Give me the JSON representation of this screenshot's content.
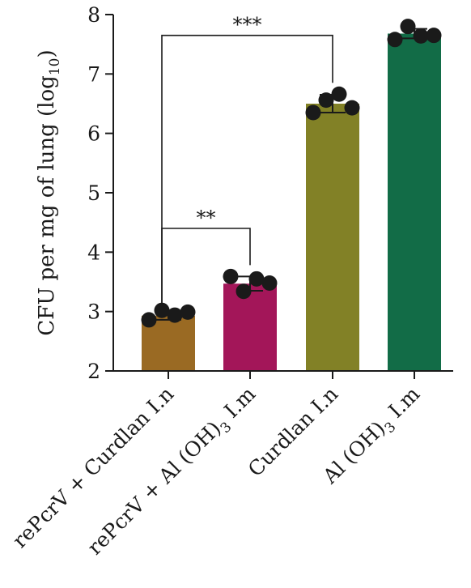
{
  "chart_data": {
    "type": "bar",
    "ylabel_main": "CFU per mg of lung (log",
    "ylabel_sub": "10",
    "ylabel_end": ")",
    "ylim": [
      2,
      8
    ],
    "yticks": [
      "2",
      "3",
      "4",
      "5",
      "6",
      "7",
      "8"
    ],
    "grid": false,
    "categories": [
      {
        "main": "rePcrV + Curdlan I.n",
        "sub": "",
        "tail": ""
      },
      {
        "main": "rePcrV + Al (OH)",
        "sub": "3",
        "tail": " I.m"
      },
      {
        "main": "Curdlan I.n",
        "sub": "",
        "tail": ""
      },
      {
        "main": "Al (OH)",
        "sub": "3",
        "tail": " I.m"
      }
    ],
    "values": [
      2.93,
      3.47,
      6.5,
      7.68
    ],
    "errors": [
      0.07,
      0.12,
      0.15,
      0.08
    ],
    "colors": [
      "#9a6a23",
      "#a31659",
      "#828126",
      "#126c47"
    ],
    "points": [
      [
        2.86,
        3.02,
        2.94,
        2.99
      ],
      [
        3.59,
        3.34,
        3.55,
        3.48
      ],
      [
        6.35,
        6.56,
        6.66,
        6.43
      ],
      [
        7.58,
        7.8,
        7.64,
        7.65
      ]
    ],
    "significance": [
      {
        "from": 0,
        "to": 1,
        "label": "**",
        "y": 4.4
      },
      {
        "from": 0,
        "to": 2,
        "label": "***",
        "y": 7.65
      }
    ]
  }
}
